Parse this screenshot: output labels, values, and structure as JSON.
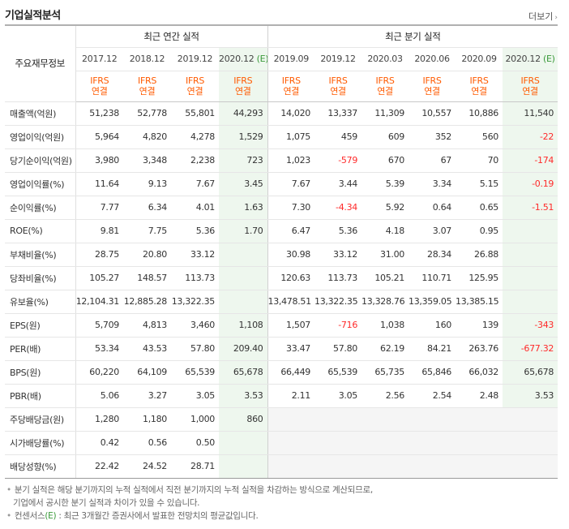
{
  "header": {
    "title": "기업실적분석",
    "more_label": "더보기"
  },
  "table": {
    "row_header_label": "주요재무정보",
    "annual_group_label": "최근 연간 실적",
    "quarter_group_label": "최근 분기 실적",
    "annual_periods": [
      "2017.12",
      "2018.12",
      "2019.12",
      "2020.12"
    ],
    "quarter_periods": [
      "2019.09",
      "2019.12",
      "2020.03",
      "2020.06",
      "2020.09",
      "2020.12"
    ],
    "consensus_marker": "(E)",
    "ifrs_line1": "IFRS",
    "ifrs_line2": "연결",
    "rows": [
      {
        "label": "매출액(억원)",
        "values": [
          "51,238",
          "52,778",
          "55,801",
          "44,293",
          "14,020",
          "13,337",
          "11,309",
          "10,557",
          "10,886",
          "11,540"
        ]
      },
      {
        "label": "영업이익(억원)",
        "values": [
          "5,964",
          "4,820",
          "4,278",
          "1,529",
          "1,075",
          "459",
          "609",
          "352",
          "560",
          "-22"
        ]
      },
      {
        "label": "당기순이익(억원)",
        "values": [
          "3,980",
          "3,348",
          "2,238",
          "723",
          "1,023",
          "-579",
          "670",
          "67",
          "70",
          "-174"
        ]
      },
      {
        "label": "영업이익률(%)",
        "values": [
          "11.64",
          "9.13",
          "7.67",
          "3.45",
          "7.67",
          "3.44",
          "5.39",
          "3.34",
          "5.15",
          "-0.19"
        ]
      },
      {
        "label": "순이익률(%)",
        "values": [
          "7.77",
          "6.34",
          "4.01",
          "1.63",
          "7.30",
          "-4.34",
          "5.92",
          "0.64",
          "0.65",
          "-1.51"
        ]
      },
      {
        "label": "ROE(%)",
        "values": [
          "9.81",
          "7.75",
          "5.36",
          "1.70",
          "6.47",
          "5.36",
          "4.18",
          "3.07",
          "0.95",
          ""
        ]
      },
      {
        "label": "부채비율(%)",
        "values": [
          "28.75",
          "20.80",
          "33.12",
          "",
          "30.98",
          "33.12",
          "31.00",
          "28.34",
          "26.88",
          ""
        ]
      },
      {
        "label": "당좌비율(%)",
        "values": [
          "105.27",
          "148.57",
          "113.73",
          "",
          "120.63",
          "113.73",
          "105.21",
          "110.71",
          "125.95",
          ""
        ]
      },
      {
        "label": "유보율(%)",
        "values": [
          "12,104.31",
          "12,885.28",
          "13,322.35",
          "",
          "13,478.51",
          "13,322.35",
          "13,328.76",
          "13,359.05",
          "13,385.15",
          ""
        ]
      },
      {
        "label": "EPS(원)",
        "values": [
          "5,709",
          "4,813",
          "3,460",
          "1,108",
          "1,507",
          "-716",
          "1,038",
          "160",
          "139",
          "-343"
        ]
      },
      {
        "label": "PER(배)",
        "values": [
          "53.34",
          "43.53",
          "57.80",
          "209.40",
          "33.47",
          "57.80",
          "62.19",
          "84.21",
          "263.76",
          "-677.32"
        ]
      },
      {
        "label": "BPS(원)",
        "values": [
          "60,220",
          "64,109",
          "65,539",
          "65,678",
          "66,449",
          "65,539",
          "65,735",
          "65,846",
          "66,032",
          "65,678"
        ]
      },
      {
        "label": "PBR(배)",
        "values": [
          "5.06",
          "3.27",
          "3.05",
          "3.53",
          "2.11",
          "3.05",
          "2.56",
          "2.54",
          "2.48",
          "3.53"
        ]
      },
      {
        "label": "주당배당금(원)",
        "values": [
          "1,280",
          "1,180",
          "1,000",
          "860",
          "",
          "",
          "",
          "",
          "",
          ""
        ]
      },
      {
        "label": "시가배당률(%)",
        "values": [
          "0.42",
          "0.56",
          "0.50",
          "",
          "",
          "",
          "",
          "",
          "",
          ""
        ]
      },
      {
        "label": "배당성향(%)",
        "values": [
          "22.42",
          "24.52",
          "28.71",
          "",
          "",
          "",
          "",
          "",
          "",
          ""
        ]
      }
    ]
  },
  "notes": {
    "note1_line1": "분기 실적은 해당 분기까지의 누적 실적에서 직전 분기까지의 누적 실적을 차감하는 방식으로 계산되므로,",
    "note1_line2": "기업에서 공시한 분기 실적과 차이가 있을 수 있습니다.",
    "note2_prefix": "컨센서스",
    "note2_marker": "(E)",
    "note2_text": ": 최근 3개월간 증권사에서 발표한 전망치의 평균값입니다."
  }
}
